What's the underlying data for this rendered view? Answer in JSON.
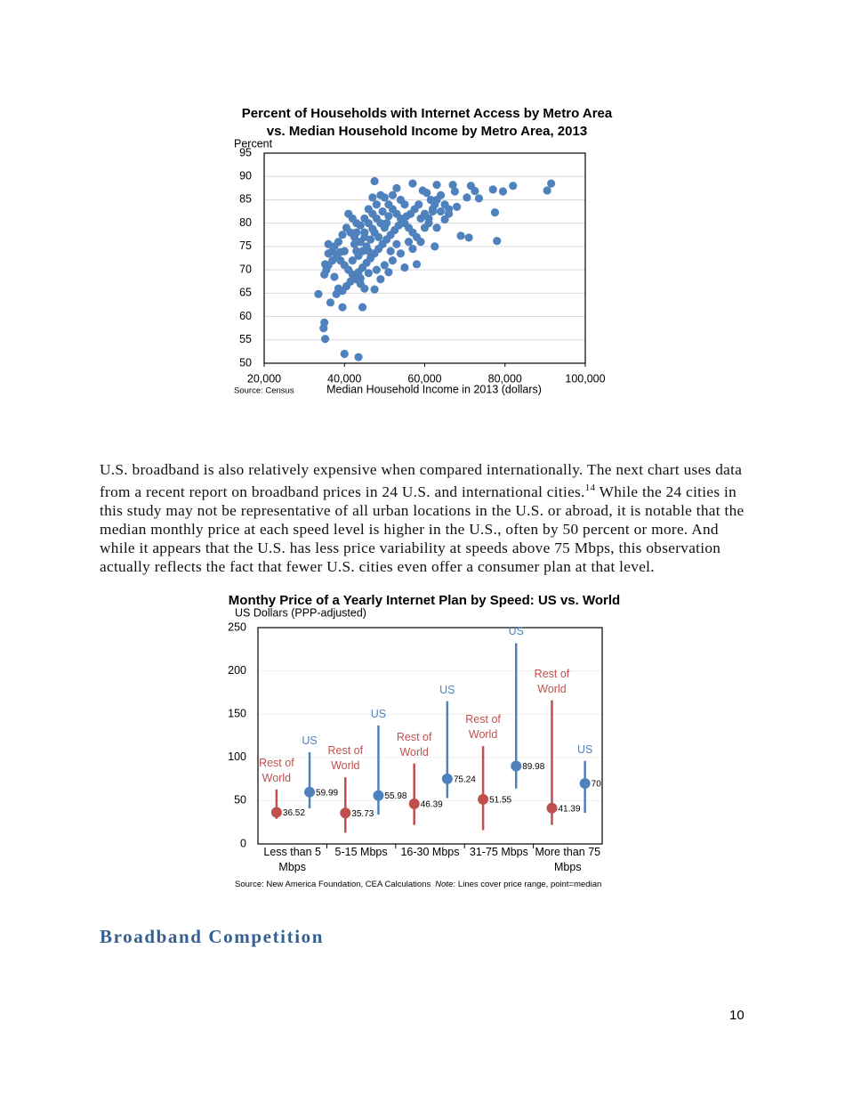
{
  "chart_data": [
    {
      "type": "scatter",
      "title": "Percent of Households with Internet Access by Metro Area vs. Median Household Income by Metro Area, 2013",
      "y_label": "Percent",
      "x_label": "Median Household Income in 2013 (dollars)",
      "source": "Source: Census",
      "color": "#4f81bd",
      "grid": true,
      "xlim": [
        20000,
        100000
      ],
      "xticks": [
        {
          "value": 20000,
          "label": "20,000"
        },
        {
          "value": 40000,
          "label": "40,000"
        },
        {
          "value": 60000,
          "label": "60,000"
        },
        {
          "value": 80000,
          "label": "80,000"
        },
        {
          "value": 100000,
          "label": "100,000"
        }
      ],
      "ylim": [
        50,
        95
      ],
      "yticks": [
        50,
        55,
        60,
        65,
        70,
        75,
        80,
        85,
        90,
        95
      ],
      "x": [
        40000,
        43500,
        35000,
        34800,
        35200,
        33500,
        36500,
        39500,
        44500,
        47500,
        57000,
        91500,
        90500,
        82000,
        79500,
        77000,
        78000,
        77500,
        71000,
        69000,
        62500,
        58000,
        55000,
        47500,
        73500,
        72500,
        71500,
        70500,
        68000,
        67500,
        67000,
        66000,
        65000,
        63000,
        62500,
        36000,
        37000,
        38000,
        39000,
        40000,
        41000,
        42000,
        43000,
        44000,
        45000,
        36000,
        35500,
        35000,
        35200,
        37500,
        38500,
        39500,
        40500,
        41500,
        38000,
        42000,
        43000,
        44000,
        45000,
        46000,
        47000,
        48000,
        49000,
        50000,
        51000,
        52000,
        53000,
        54000,
        55000,
        56000,
        57000,
        58000,
        59000,
        60000,
        61000,
        62000,
        63000,
        64000,
        60500,
        59500,
        61500,
        58500,
        57500,
        56500,
        55500,
        54500,
        53500,
        52500,
        51500,
        50500,
        49500,
        48500,
        47500,
        46500,
        45500,
        44500,
        43500,
        42500,
        41500,
        40500,
        39500,
        38500,
        37500,
        41000,
        42000,
        43000,
        44000,
        45000,
        46000,
        47000,
        48000,
        49000,
        50000,
        51000,
        52000,
        53000,
        54000,
        55000,
        56000,
        57000,
        52000,
        50000,
        48000,
        46000,
        44000,
        46500,
        45500,
        44500,
        43500,
        42500,
        47500,
        48500,
        49500,
        50500,
        51500,
        53000,
        54000,
        51000,
        49000,
        47000,
        46000,
        45000,
        43000,
        40000,
        39000,
        37000,
        36000,
        59000,
        60000,
        61000,
        62000,
        63000,
        64000,
        65000,
        66000
      ],
      "y": [
        52,
        51.3,
        58.7,
        57.5,
        55.2,
        64.8,
        63,
        62,
        62,
        89,
        88.5,
        88.5,
        87,
        88,
        86.8,
        87.2,
        76.2,
        82.3,
        76.9,
        77.3,
        75,
        71.2,
        70.5,
        65.8,
        85.3,
        86.9,
        88,
        85.5,
        83.5,
        86.8,
        88.2,
        82,
        80.8,
        88.2,
        84,
        75.5,
        74,
        73,
        72,
        71,
        70,
        69,
        68,
        67,
        66,
        71,
        70,
        69,
        71.2,
        68.5,
        66,
        65.5,
        66.5,
        67.5,
        64.8,
        72,
        74,
        76,
        78,
        80,
        82,
        84,
        86,
        85.5,
        84,
        83,
        82,
        81,
        80,
        79,
        78,
        77,
        76,
        79,
        81,
        83,
        85,
        86,
        86.5,
        87,
        85,
        84,
        83,
        82,
        81.5,
        80.5,
        79.5,
        78.5,
        77.5,
        76.5,
        75.5,
        74.5,
        73.5,
        72.5,
        71.5,
        70.5,
        69.5,
        77,
        78,
        79,
        77.5,
        76,
        75,
        82,
        81,
        80,
        79.5,
        81,
        83,
        85.5,
        81,
        80,
        79,
        81.5,
        86,
        87.5,
        85,
        84,
        76,
        74.5,
        72,
        71,
        70,
        69.3,
        68.2,
        76.5,
        75,
        74,
        73,
        75.5,
        78,
        77,
        82.5,
        80,
        74,
        75.5,
        73.5,
        69.5,
        68,
        78.8,
        74,
        77,
        78,
        74,
        73.8,
        72,
        73.5,
        81,
        82,
        80,
        82.5,
        79,
        82.5,
        84,
        83
      ]
    },
    {
      "type": "range",
      "title": "Monthy Price of a Yearly Internet Plan by Speed: US vs. World",
      "y_label": "US Dollars (PPP-adjusted)",
      "source": "Source: New America Foundation, CEA Calculations",
      "note_label": "Note:",
      "note": "Lines cover price range, point=median",
      "categories": [
        "Less than 5 Mbps",
        "5-15 Mbps",
        "16-30 Mbps",
        "31-75 Mbps",
        "More than 75 Mbps"
      ],
      "ylim": [
        0,
        250
      ],
      "yticks": [
        0,
        50,
        100,
        150,
        200,
        250
      ],
      "grid": true,
      "series": [
        {
          "name": "Rest of World",
          "color": "#c0504d",
          "values": [
            36.52,
            35.73,
            46.39,
            51.55,
            41.39
          ],
          "low": [
            29,
            13,
            22,
            16,
            22
          ],
          "high": [
            63,
            77,
            93,
            113,
            166
          ]
        },
        {
          "name": "US",
          "color": "#4f81bd",
          "values": [
            59.99,
            55.98,
            75.24,
            89.98,
            70
          ],
          "low": [
            41,
            34,
            53,
            64,
            36
          ],
          "high": [
            106,
            137,
            165,
            232,
            96
          ]
        }
      ]
    }
  ],
  "body": {
    "paragraph_start": "U.S. broadband is also relatively expensive when compared internationally. The next chart uses data from a recent report on broadband prices in 24 U.S. and international cities.",
    "footnote": "14",
    "paragraph_end": " While the 24 cities in this study may not be representative of all urban locations in the U.S. or abroad, it is notable that the median monthly price at each speed level is higher in the U.S., often by 50 percent or more. And while it appears that the U.S. has less price variability at speeds above 75 Mbps, this observation actually reflects the fact that fewer U.S. cities even offer a consumer plan at that level.",
    "heading": "Broadband Competition",
    "page_number": "10"
  }
}
